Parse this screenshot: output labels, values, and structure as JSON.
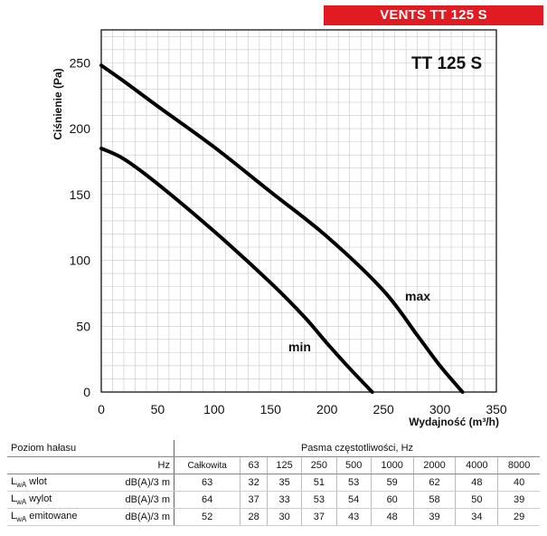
{
  "brand": {
    "banner": "VENTS TT 125 S",
    "model": "TT 125 S"
  },
  "chart_data": {
    "type": "line",
    "xlabel": "Wydajność (m³/h)",
    "ylabel": "Ciśnienie (Pa)",
    "xlim": [
      0,
      350
    ],
    "ylim": [
      0,
      275
    ],
    "xticks": [
      0,
      50,
      100,
      150,
      200,
      250,
      300,
      350
    ],
    "yticks": [
      0,
      50,
      100,
      150,
      200,
      250
    ],
    "grid": true,
    "series": [
      {
        "name": "max",
        "x": [
          0,
          20,
          50,
          100,
          150,
          200,
          250,
          280,
          300,
          320
        ],
        "y": [
          248,
          236,
          217,
          186,
          152,
          118,
          77,
          43,
          20,
          0
        ]
      },
      {
        "name": "min",
        "x": [
          0,
          20,
          50,
          100,
          150,
          180,
          200,
          220,
          240
        ],
        "y": [
          185,
          177,
          158,
          122,
          83,
          57,
          37,
          18,
          0
        ]
      }
    ]
  },
  "noise_table": {
    "title": "Poziom hałasu",
    "freq_unit": "Hz",
    "bands_title": "Pasma częstotliwości, Hz",
    "columns": [
      "Całkowita",
      "63",
      "125",
      "250",
      "500",
      "1000",
      "2000",
      "4000",
      "8000"
    ],
    "rows": [
      {
        "label_main": "L",
        "label_sub": "wA",
        "label_rest": " wlot",
        "unit": "dB(A)/3 m",
        "values": [
          "63",
          "32",
          "35",
          "51",
          "53",
          "59",
          "62",
          "48",
          "40"
        ]
      },
      {
        "label_main": "L",
        "label_sub": "wA",
        "label_rest": " wylot",
        "unit": "dB(A)/3 m",
        "values": [
          "64",
          "37",
          "33",
          "53",
          "54",
          "60",
          "58",
          "50",
          "39"
        ]
      },
      {
        "label_main": "L",
        "label_sub": "wA",
        "label_rest": " emitowane",
        "unit": "dB(A)/3 m",
        "values": [
          "52",
          "28",
          "30",
          "37",
          "43",
          "48",
          "39",
          "34",
          "29"
        ]
      }
    ]
  }
}
